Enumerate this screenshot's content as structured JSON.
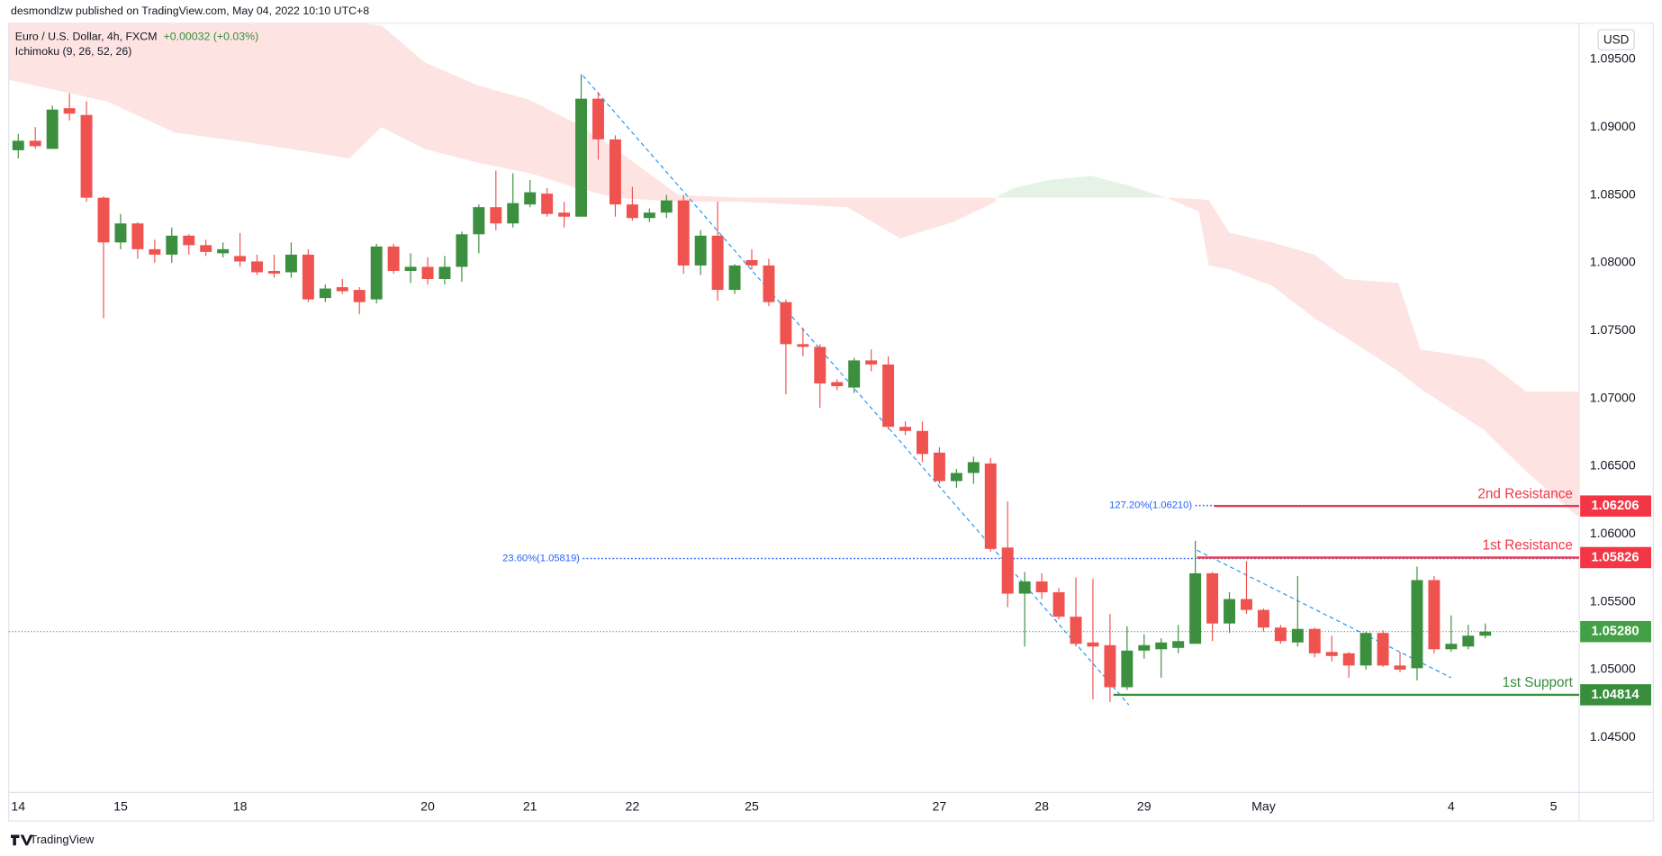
{
  "header": {
    "publisher": "desmondlzw published on TradingView.com, May 04, 2022 10:10 UTC+8",
    "symbol": "Euro / U.S. Dollar, 4h, FXCM",
    "change": "+0.00032 (+0.03%)",
    "indicator": "Ichimoku (9, 26, 52, 26)",
    "currency": "USD"
  },
  "footer": {
    "brand": "TradingView"
  },
  "chart_data": {
    "type": "candlestick",
    "up_color": "#3d8f40",
    "down_color": "#ef5350",
    "x": [
      0,
      1,
      2,
      3,
      4,
      5,
      6,
      7,
      8,
      9,
      10,
      11,
      12,
      13,
      14,
      15,
      16,
      17,
      18,
      19,
      20,
      21,
      22,
      23,
      24,
      25,
      26,
      27,
      28,
      29,
      30,
      31,
      32,
      33,
      34,
      35,
      36,
      37,
      38,
      39,
      40,
      41,
      42,
      43,
      44,
      45,
      46,
      47,
      48,
      49,
      50,
      51,
      52,
      53,
      54,
      55,
      56,
      57,
      58,
      59,
      60,
      61,
      62,
      63,
      64,
      65,
      66,
      67,
      68,
      69,
      70,
      71,
      72,
      73,
      74,
      75,
      76,
      77,
      78,
      79,
      80,
      81,
      82,
      83,
      84,
      85,
      86
    ],
    "open": [
      1.0883,
      1.089,
      1.0884,
      1.0914,
      1.0909,
      1.0848,
      1.0815,
      1.0829,
      1.081,
      1.0806,
      1.082,
      1.0813,
      1.0807,
      1.0805,
      1.0801,
      1.0794,
      1.0793,
      1.0806,
      1.0774,
      1.0782,
      1.078,
      1.0773,
      1.0812,
      1.0794,
      1.0797,
      1.0788,
      1.0797,
      1.0821,
      1.0841,
      1.0829,
      1.0843,
      1.0851,
      1.0837,
      1.0834,
      1.0921,
      1.0891,
      1.0843,
      1.0833,
      1.0837,
      1.0846,
      1.0798,
      1.082,
      1.078,
      1.0802,
      1.0798,
      1.0771,
      1.074,
      1.0738,
      1.0712,
      1.0708,
      1.0728,
      1.0725,
      1.0679,
      1.0676,
      1.066,
      1.0639,
      1.0645,
      1.0652,
      1.059,
      1.0556,
      1.0565,
      1.0557,
      1.0539,
      1.052,
      1.0518,
      1.0487,
      1.0514,
      1.0515,
      1.0516,
      1.0519,
      1.0571,
      1.0534,
      1.0552,
      1.0544,
      1.0531,
      1.052,
      1.053,
      1.0513,
      1.0512,
      1.0503,
      1.0527,
      1.0503,
      1.0501,
      1.0566,
      1.0515,
      1.0517,
      1.0525
    ],
    "high": [
      1.0895,
      1.09,
      1.0916,
      1.0925,
      1.0919,
      1.0849,
      1.0836,
      1.083,
      1.0817,
      1.0826,
      1.0821,
      1.0817,
      1.0815,
      1.0822,
      1.0806,
      1.0806,
      1.0815,
      1.081,
      1.0784,
      1.0788,
      1.0782,
      1.0814,
      1.0814,
      1.0807,
      1.0804,
      1.0805,
      1.0823,
      1.0843,
      1.0868,
      1.0866,
      1.0861,
      1.0855,
      1.0845,
      1.0939,
      1.0926,
      1.0894,
      1.0856,
      1.084,
      1.085,
      1.085,
      1.0824,
      1.0845,
      1.0799,
      1.081,
      1.0803,
      1.0773,
      1.0752,
      1.074,
      1.0714,
      1.073,
      1.0736,
      1.0731,
      1.0683,
      1.0683,
      1.0664,
      1.0648,
      1.0657,
      1.0656,
      1.0624,
      1.0572,
      1.0571,
      1.056,
      1.0568,
      1.0567,
      1.0541,
      1.0532,
      1.0526,
      1.0523,
      1.0533,
      1.0595,
      1.0572,
      1.0557,
      1.058,
      1.0545,
      1.0533,
      1.0569,
      1.0531,
      1.0525,
      1.0513,
      1.0528,
      1.0529,
      1.0513,
      1.0576,
      1.0569,
      1.054,
      1.0533,
      1.0534
    ],
    "low": [
      1.0877,
      1.0884,
      1.0884,
      1.0905,
      1.0845,
      1.0759,
      1.081,
      1.0803,
      1.08,
      1.08,
      1.0806,
      1.0805,
      1.0804,
      1.0797,
      1.0791,
      1.0789,
      1.0789,
      1.0771,
      1.0771,
      1.0777,
      1.0762,
      1.077,
      1.0792,
      1.0785,
      1.0784,
      1.0784,
      1.0786,
      1.0807,
      1.0824,
      1.0826,
      1.0841,
      1.0834,
      1.0826,
      1.0834,
      1.0876,
      1.0834,
      1.0831,
      1.083,
      1.0833,
      1.0792,
      1.0791,
      1.0772,
      1.0777,
      1.0795,
      1.0768,
      1.0703,
      1.0731,
      1.0693,
      1.0706,
      1.0704,
      1.072,
      1.0677,
      1.0673,
      1.0653,
      1.0637,
      1.0634,
      1.0637,
      1.0587,
      1.0546,
      1.0517,
      1.0552,
      1.0537,
      1.0517,
      1.0478,
      1.0476,
      1.0485,
      1.0508,
      1.0494,
      1.0512,
      1.0519,
      1.0521,
      1.0527,
      1.0541,
      1.0528,
      1.0519,
      1.0517,
      1.0509,
      1.0506,
      1.0494,
      1.05,
      1.0502,
      1.0498,
      1.0492,
      1.0512,
      1.0513,
      1.0515,
      1.0523
    ],
    "close": [
      1.089,
      1.0886,
      1.0913,
      1.091,
      1.0848,
      1.0815,
      1.0829,
      1.081,
      1.0806,
      1.082,
      1.0813,
      1.0808,
      1.081,
      1.0801,
      1.0793,
      1.0792,
      1.0806,
      1.0773,
      1.0781,
      1.0779,
      1.0771,
      1.0812,
      1.0794,
      1.0797,
      1.0788,
      1.0797,
      1.0821,
      1.0841,
      1.0829,
      1.0844,
      1.0852,
      1.0836,
      1.0834,
      1.0921,
      1.0891,
      1.0843,
      1.0833,
      1.0837,
      1.0846,
      1.0798,
      1.082,
      1.078,
      1.0798,
      1.0798,
      1.0771,
      1.074,
      1.0738,
      1.0711,
      1.0709,
      1.0728,
      1.0725,
      1.0679,
      1.0676,
      1.0659,
      1.0639,
      1.0645,
      1.0653,
      1.0589,
      1.0556,
      1.0565,
      1.0557,
      1.0539,
      1.0519,
      1.0517,
      1.0487,
      1.0514,
      1.0518,
      1.052,
      1.0521,
      1.0571,
      1.0534,
      1.0552,
      1.0544,
      1.0531,
      1.0521,
      1.053,
      1.0512,
      1.051,
      1.0503,
      1.0527,
      1.0503,
      1.05,
      1.0566,
      1.0515,
      1.0519,
      1.0525,
      1.0528
    ],
    "xlim": [
      -0.56,
      91.5
    ],
    "ylim": [
      1.04094,
      1.09766
    ],
    "xticks": [
      {
        "value": 0,
        "label": "14"
      },
      {
        "value": 6,
        "label": "15"
      },
      {
        "value": 13,
        "label": "18"
      },
      {
        "value": 24,
        "label": "20"
      },
      {
        "value": 30,
        "label": "21"
      },
      {
        "value": 36,
        "label": "22"
      },
      {
        "value": 43,
        "label": "25"
      },
      {
        "value": 54,
        "label": "27"
      },
      {
        "value": 60,
        "label": "28"
      },
      {
        "value": 66,
        "label": "29"
      },
      {
        "value": 73,
        "label": "May"
      },
      {
        "value": 84,
        "label": "4"
      },
      {
        "value": 90,
        "label": "5"
      }
    ],
    "yticks": [
      {
        "value": 1.045,
        "label": "1.04500"
      },
      {
        "value": 1.05,
        "label": "1.05000"
      },
      {
        "value": 1.055,
        "label": "1.05500"
      },
      {
        "value": 1.06,
        "label": "1.06000"
      },
      {
        "value": 1.065,
        "label": "1.06500"
      },
      {
        "value": 1.07,
        "label": "1.07000"
      },
      {
        "value": 1.075,
        "label": "1.07500"
      },
      {
        "value": 1.08,
        "label": "1.08000"
      },
      {
        "value": 1.085,
        "label": "1.08500"
      },
      {
        "value": 1.09,
        "label": "1.09000"
      },
      {
        "value": 1.095,
        "label": "1.09500"
      }
    ],
    "grid": false,
    "cloud": [
      {
        "color": "#fde4e3",
        "x": [
          -0.56,
          5.2,
          9.2,
          13.9,
          19.4,
          21.3,
          23.8,
          26.9,
          30.0,
          32.5,
          35.0,
          38.7,
          42.4,
          48.6,
          51.7,
          54.8,
          57.3
        ],
        "upper": [
          1.0977,
          1.0977,
          1.0977,
          1.0977,
          1.0977,
          1.0975,
          1.0948,
          1.0931,
          1.092,
          1.0904,
          1.0884,
          1.085,
          1.0848,
          1.0848,
          1.0848,
          1.0848,
          1.0848
        ],
        "lower": [
          1.0935,
          1.0919,
          1.0896,
          1.0888,
          1.0877,
          1.09,
          1.0884,
          1.0874,
          1.0866,
          1.0856,
          1.0848,
          1.0845,
          1.0845,
          1.0841,
          1.0818,
          1.083,
          1.0845
        ]
      },
      {
        "color": "#e5f3e6",
        "x": [
          57.3,
          58.3,
          60.4,
          62.9,
          65.1,
          67.3
        ],
        "upper": [
          1.0848,
          1.0855,
          1.0861,
          1.0864,
          1.0857,
          1.0848
        ],
        "lower": [
          1.0848,
          1.0848,
          1.0848,
          1.0848,
          1.0848,
          1.0848
        ]
      },
      {
        "color": "#fde4e3",
        "x": [
          67.3,
          69.2,
          69.8,
          71.0,
          73.5,
          76.0,
          77.8,
          80.9,
          82.2,
          85.9,
          88.4,
          91.5
        ],
        "upper": [
          1.0848,
          1.0847,
          1.0846,
          1.0822,
          1.0815,
          1.0806,
          1.0788,
          1.0785,
          1.0736,
          1.0729,
          1.0705,
          1.0705
        ],
        "lower": [
          1.0848,
          1.0838,
          1.0798,
          1.0795,
          1.0783,
          1.0759,
          1.0745,
          1.072,
          1.0707,
          1.0677,
          1.0646,
          1.0612
        ]
      }
    ],
    "trendlines": [
      {
        "color": "#2196f3",
        "x": [
          33.1,
          65.1
        ],
        "values": [
          1.0938,
          1.0474
        ]
      },
      {
        "color": "#2196f3",
        "x": [
          69.1,
          84.0
        ],
        "values": [
          1.0588,
          1.0494
        ]
      }
    ],
    "fib_levels": [
      {
        "label": "23.60%(1.05819)",
        "value": 1.05819,
        "x": 33.1,
        "color": "#2962ff"
      },
      {
        "label": "127.20%(1.06210)",
        "value": 1.0621,
        "x": 69.0,
        "color": "#2962ff"
      }
    ],
    "levels": [
      {
        "name": "2nd Resistance",
        "value": 1.06206,
        "x": 70.1,
        "color": "#f23645"
      },
      {
        "name": "1st Resistance",
        "value": 1.05826,
        "x": 69.1,
        "color": "#f23645"
      },
      {
        "name": "1st Support",
        "value": 1.04814,
        "x": 64.2,
        "color": "#388e3c"
      }
    ],
    "last_price": {
      "value": 1.0528,
      "label": "1.05280",
      "color": "#43a047"
    }
  }
}
